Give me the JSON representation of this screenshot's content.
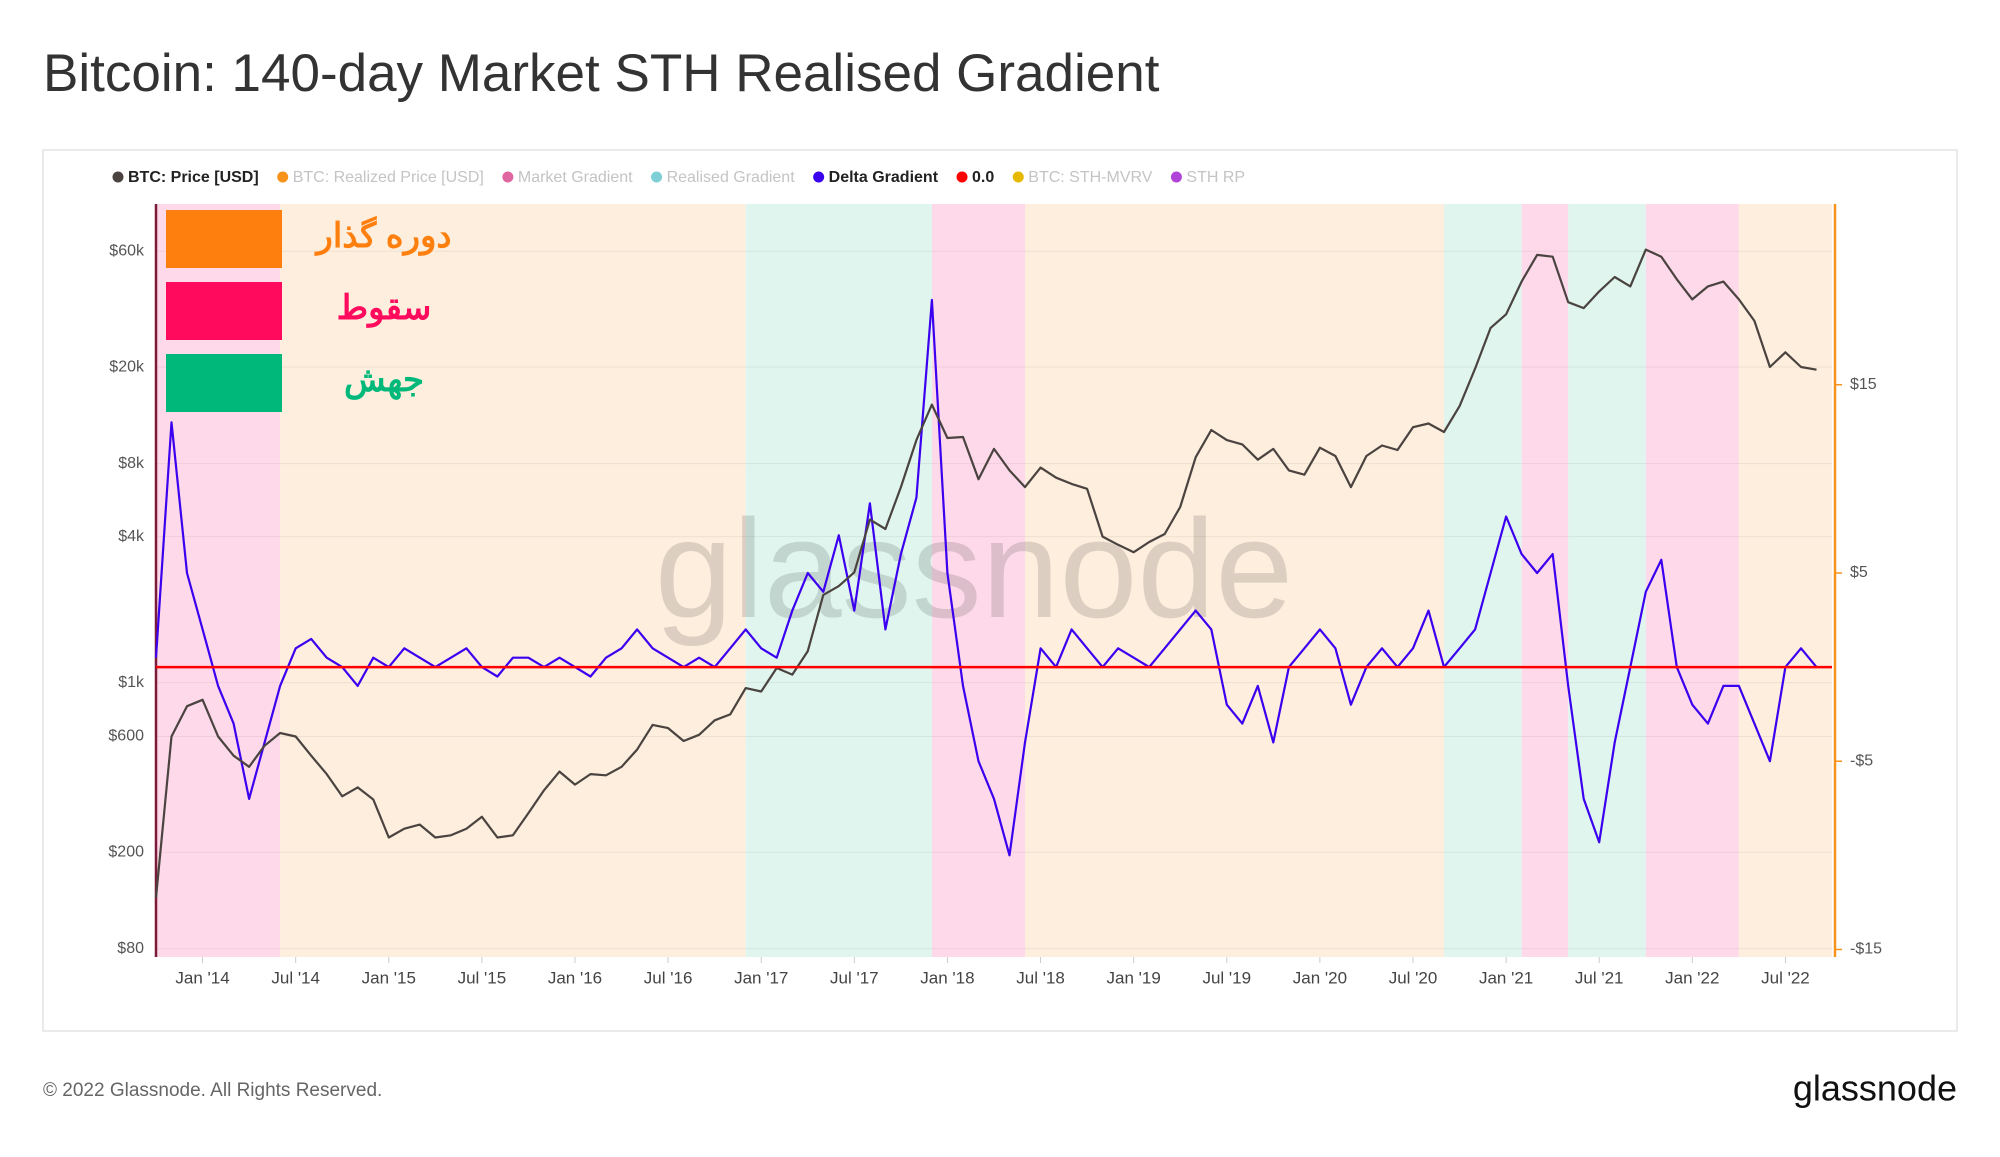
{
  "title": "Bitcoin: 140-day Market STH Realised Gradient",
  "footer": "© 2022 Glassnode. All Rights Reserved.",
  "logo": "glassnode",
  "chart_data": {
    "type": "line",
    "watermark": "glassnode",
    "log_y": true,
    "grid": true,
    "xlim": [
      "2013-10",
      "2022-10"
    ],
    "xticks": [
      {
        "value": "2014-01",
        "label": "Jan '14"
      },
      {
        "value": "2014-07",
        "label": "Jul '14"
      },
      {
        "value": "2015-01",
        "label": "Jan '15"
      },
      {
        "value": "2015-07",
        "label": "Jul '15"
      },
      {
        "value": "2016-01",
        "label": "Jan '16"
      },
      {
        "value": "2016-07",
        "label": "Jul '16"
      },
      {
        "value": "2017-01",
        "label": "Jan '17"
      },
      {
        "value": "2017-07",
        "label": "Jul '17"
      },
      {
        "value": "2018-01",
        "label": "Jan '18"
      },
      {
        "value": "2018-07",
        "label": "Jul '18"
      },
      {
        "value": "2019-01",
        "label": "Jan '19"
      },
      {
        "value": "2019-07",
        "label": "Jul '19"
      },
      {
        "value": "2020-01",
        "label": "Jan '20"
      },
      {
        "value": "2020-07",
        "label": "Jul '20"
      },
      {
        "value": "2021-01",
        "label": "Jan '21"
      },
      {
        "value": "2021-07",
        "label": "Jul '21"
      },
      {
        "value": "2022-01",
        "label": "Jan '22"
      },
      {
        "value": "2022-07",
        "label": "Jul '22"
      }
    ],
    "ylim": [
      74,
      94000
    ],
    "yticks": [
      {
        "value": 80,
        "label": "$80"
      },
      {
        "value": 200,
        "label": "$200"
      },
      {
        "value": 600,
        "label": "$600"
      },
      {
        "value": 1000,
        "label": "$1k"
      },
      {
        "value": 4000,
        "label": "$4k"
      },
      {
        "value": 8000,
        "label": "$8k"
      },
      {
        "value": 20000,
        "label": "$20k"
      },
      {
        "value": 60000,
        "label": "$60k"
      }
    ],
    "y2lim": [
      -15.4,
      24.6
    ],
    "y2ticks": [
      {
        "value": -15,
        "label": "-$15"
      },
      {
        "value": -5,
        "label": "-$5"
      },
      {
        "value": 5,
        "label": "$5"
      },
      {
        "value": 15,
        "label": "$15"
      }
    ],
    "regions": [
      {
        "start": "2013-10",
        "end": "2014-06",
        "color": "#fdd9e9"
      },
      {
        "start": "2014-06",
        "end": "2016-12",
        "color": "#fdeede"
      },
      {
        "start": "2016-12",
        "end": "2017-12",
        "color": "#e0f5ee"
      },
      {
        "start": "2017-12",
        "end": "2018-06",
        "color": "#fdd9e9"
      },
      {
        "start": "2018-06",
        "end": "2020-09",
        "color": "#fdeede"
      },
      {
        "start": "2020-09",
        "end": "2021-02",
        "color": "#e0f5ee"
      },
      {
        "start": "2021-02",
        "end": "2021-05",
        "color": "#fdd9e9"
      },
      {
        "start": "2021-05",
        "end": "2021-10",
        "color": "#e0f5ee"
      },
      {
        "start": "2021-10",
        "end": "2022-04",
        "color": "#fdd9e9"
      },
      {
        "start": "2022-04",
        "end": "2022-10",
        "color": "#fdeede"
      }
    ],
    "annotations": [
      {
        "text": "دوره گذار",
        "color": "#ff7f0e"
      },
      {
        "text": "سقوط",
        "color": "#ff0a5c"
      },
      {
        "text": "جهش",
        "color": "#00b87a"
      }
    ],
    "x": [
      "2013-10",
      "2013-11",
      "2013-12",
      "2014-01",
      "2014-02",
      "2014-03",
      "2014-04",
      "2014-05",
      "2014-06",
      "2014-07",
      "2014-08",
      "2014-09",
      "2014-10",
      "2014-11",
      "2014-12",
      "2015-01",
      "2015-02",
      "2015-03",
      "2015-04",
      "2015-05",
      "2015-06",
      "2015-07",
      "2015-08",
      "2015-09",
      "2015-10",
      "2015-11",
      "2015-12",
      "2016-01",
      "2016-02",
      "2016-03",
      "2016-04",
      "2016-05",
      "2016-06",
      "2016-07",
      "2016-08",
      "2016-09",
      "2016-10",
      "2016-11",
      "2016-12",
      "2017-01",
      "2017-02",
      "2017-03",
      "2017-04",
      "2017-05",
      "2017-06",
      "2017-07",
      "2017-08",
      "2017-09",
      "2017-10",
      "2017-11",
      "2017-12",
      "2018-01",
      "2018-02",
      "2018-03",
      "2018-04",
      "2018-05",
      "2018-06",
      "2018-07",
      "2018-08",
      "2018-09",
      "2018-10",
      "2018-11",
      "2018-12",
      "2019-01",
      "2019-02",
      "2019-03",
      "2019-04",
      "2019-05",
      "2019-06",
      "2019-07",
      "2019-08",
      "2019-09",
      "2019-10",
      "2019-11",
      "2019-12",
      "2020-01",
      "2020-02",
      "2020-03",
      "2020-04",
      "2020-05",
      "2020-06",
      "2020-07",
      "2020-08",
      "2020-09",
      "2020-10",
      "2020-11",
      "2020-12",
      "2021-01",
      "2021-02",
      "2021-03",
      "2021-04",
      "2021-05",
      "2021-06",
      "2021-07",
      "2021-08",
      "2021-09",
      "2021-10",
      "2021-11",
      "2021-12",
      "2022-01",
      "2022-02",
      "2022-03",
      "2022-04",
      "2022-05",
      "2022-06",
      "2022-07",
      "2022-08",
      "2022-09"
    ],
    "series": [
      {
        "name": "BTC: Price [USD]",
        "color": "#4a4340",
        "visible": true,
        "axis": "y",
        "values": [
          130,
          600,
          800,
          850,
          600,
          500,
          450,
          550,
          620,
          600,
          500,
          420,
          340,
          370,
          330,
          230,
          250,
          260,
          230,
          235,
          250,
          280,
          230,
          235,
          290,
          360,
          430,
          380,
          420,
          415,
          450,
          530,
          670,
          650,
          575,
          610,
          700,
          740,
          950,
          920,
          1150,
          1080,
          1350,
          2300,
          2500,
          2850,
          4700,
          4300,
          6400,
          10000,
          14000,
          10200,
          10300,
          6900,
          9200,
          7500,
          6400,
          7700,
          7000,
          6600,
          6300,
          4000,
          3700,
          3450,
          3800,
          4100,
          5300,
          8500,
          11000,
          10000,
          9600,
          8300,
          9200,
          7500,
          7200,
          9300,
          8600,
          6400,
          8600,
          9500,
          9100,
          11300,
          11700,
          10800,
          13800,
          19700,
          29000,
          33000,
          45000,
          58000,
          57000,
          37000,
          35000,
          41000,
          47000,
          43000,
          61000,
          57000,
          46000,
          38000,
          43000,
          45000,
          38000,
          31000,
          20000,
          23000,
          20000,
          19500
        ]
      },
      {
        "name": "BTC: Realized Price [USD]",
        "color": "#f7931a",
        "visible": false
      },
      {
        "name": "Market Gradient",
        "color": "#e066a0",
        "visible": false
      },
      {
        "name": "Realised Gradient",
        "color": "#7ecfd6",
        "visible": false
      },
      {
        "name": "Delta Gradient",
        "color": "#3b00f0",
        "visible": true,
        "axis": "y2",
        "values": [
          0.5,
          13,
          5,
          2,
          -1,
          -3,
          -7,
          -4,
          -1,
          1,
          1.5,
          0.5,
          0,
          -1,
          0.5,
          0,
          1,
          0.5,
          0,
          0.5,
          1,
          0,
          -0.5,
          0.5,
          0.5,
          0,
          0.5,
          0,
          -0.5,
          0.5,
          1,
          2,
          1,
          0.5,
          0,
          0.5,
          0,
          1,
          2,
          1,
          0.5,
          3,
          5,
          4,
          7,
          3,
          8.7,
          2,
          6,
          9,
          19.5,
          5,
          -1,
          -5,
          -7,
          -10,
          -4,
          1,
          0,
          2,
          1,
          0,
          1,
          0.5,
          0,
          1,
          2,
          3,
          2,
          -2,
          -3,
          -1,
          -4,
          0,
          1,
          2,
          1,
          -2,
          0,
          1,
          0,
          1,
          3,
          0,
          1,
          2,
          5,
          8,
          6,
          5,
          6,
          -1,
          -7,
          -9.3,
          -4,
          0,
          4,
          5.7,
          0,
          -2,
          -3,
          -1,
          -1,
          -3,
          -5,
          0,
          1,
          0
        ]
      },
      {
        "name": "0.0",
        "color": "#ff0000",
        "visible": true,
        "axis": "y2",
        "value": 0
      },
      {
        "name": "BTC: STH-MVRV",
        "color": "#e6b800",
        "visible": false
      },
      {
        "name": "STH RP",
        "color": "#b044d8",
        "visible": false
      }
    ]
  }
}
